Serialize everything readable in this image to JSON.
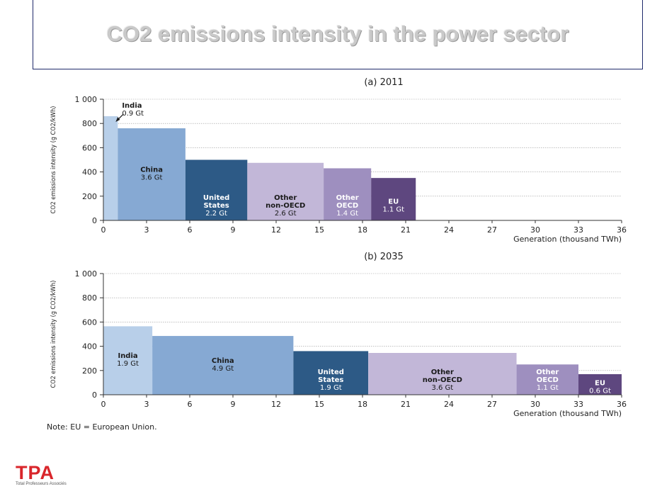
{
  "title": "CO2 emissions intensity in the power sector",
  "note": "Note: EU = European Union.",
  "logo": {
    "text": "TPA",
    "subtitle": "Total Professeurs Associés"
  },
  "colors": {
    "India": "#b8cfe9",
    "China": "#86a9d3",
    "United States": "#2d5a86",
    "Other non-OECD": "#c2b7d8",
    "Other OECD": "#9e8fbf",
    "EU": "#5e477f"
  },
  "chart_data": [
    {
      "type": "bar",
      "title": "(a) 2011",
      "xlabel": "Generation (thousand TWh)",
      "ylabel": "CO2 emissions intensity (g CO2/kWh)",
      "xlim": [
        0,
        36
      ],
      "ylim": [
        0,
        1000
      ],
      "xticks": [
        "0",
        "3",
        "6",
        "9",
        "12",
        "15",
        "18",
        "21",
        "24",
        "27",
        "30",
        "33",
        "36"
      ],
      "yticks": [
        "0",
        "200",
        "400",
        "600",
        "800",
        "1 000"
      ],
      "grid": true,
      "bars": [
        {
          "name": "India",
          "lines": [
            "India",
            "0.9 Gt"
          ],
          "x0": 0,
          "x1": 1.0,
          "value": 860
        },
        {
          "name": "China",
          "lines": [
            "China",
            "3.6 Gt"
          ],
          "x0": 1.0,
          "x1": 5.7,
          "value": 760
        },
        {
          "name": "United States",
          "lines": [
            "United",
            "States",
            "2.2 Gt"
          ],
          "x0": 5.7,
          "x1": 10.0,
          "value": 500
        },
        {
          "name": "Other non-OECD",
          "lines": [
            "Other",
            "non-OECD",
            "2.6 Gt"
          ],
          "x0": 10.0,
          "x1": 15.3,
          "value": 475
        },
        {
          "name": "Other OECD",
          "lines": [
            "Other",
            "OECD",
            "1.4 Gt"
          ],
          "x0": 15.3,
          "x1": 18.6,
          "value": 430
        },
        {
          "name": "EU",
          "lines": [
            "EU",
            "1.1 Gt"
          ],
          "x0": 18.6,
          "x1": 21.7,
          "value": 350
        }
      ]
    },
    {
      "type": "bar",
      "title": "(b) 2035",
      "xlabel": "Generation (thousand TWh)",
      "ylabel": "CO2 emissions intensity (g CO2/kWh)",
      "xlim": [
        0,
        36
      ],
      "ylim": [
        0,
        1000
      ],
      "xticks": [
        "0",
        "3",
        "6",
        "9",
        "12",
        "15",
        "18",
        "21",
        "24",
        "27",
        "30",
        "33",
        "36"
      ],
      "yticks": [
        "0",
        "200",
        "400",
        "600",
        "800",
        "1 000"
      ],
      "grid": true,
      "bars": [
        {
          "name": "India",
          "lines": [
            "India",
            "1.9 Gt"
          ],
          "x0": 0,
          "x1": 3.4,
          "value": 565
        },
        {
          "name": "China",
          "lines": [
            "China",
            "4.9 Gt"
          ],
          "x0": 3.4,
          "x1": 13.2,
          "value": 485
        },
        {
          "name": "United States",
          "lines": [
            "United",
            "States",
            "1.9 Gt"
          ],
          "x0": 13.2,
          "x1": 18.4,
          "value": 360
        },
        {
          "name": "Other non-OECD",
          "lines": [
            "Other",
            "non-OECD",
            "3.6 Gt"
          ],
          "x0": 18.4,
          "x1": 28.7,
          "value": 345
        },
        {
          "name": "Other OECD",
          "lines": [
            "Other",
            "OECD",
            "1.1 Gt"
          ],
          "x0": 28.7,
          "x1": 33.0,
          "value": 250
        },
        {
          "name": "EU",
          "lines": [
            "EU",
            "0.6 Gt"
          ],
          "x0": 33.0,
          "x1": 36.0,
          "value": 170
        }
      ]
    }
  ]
}
